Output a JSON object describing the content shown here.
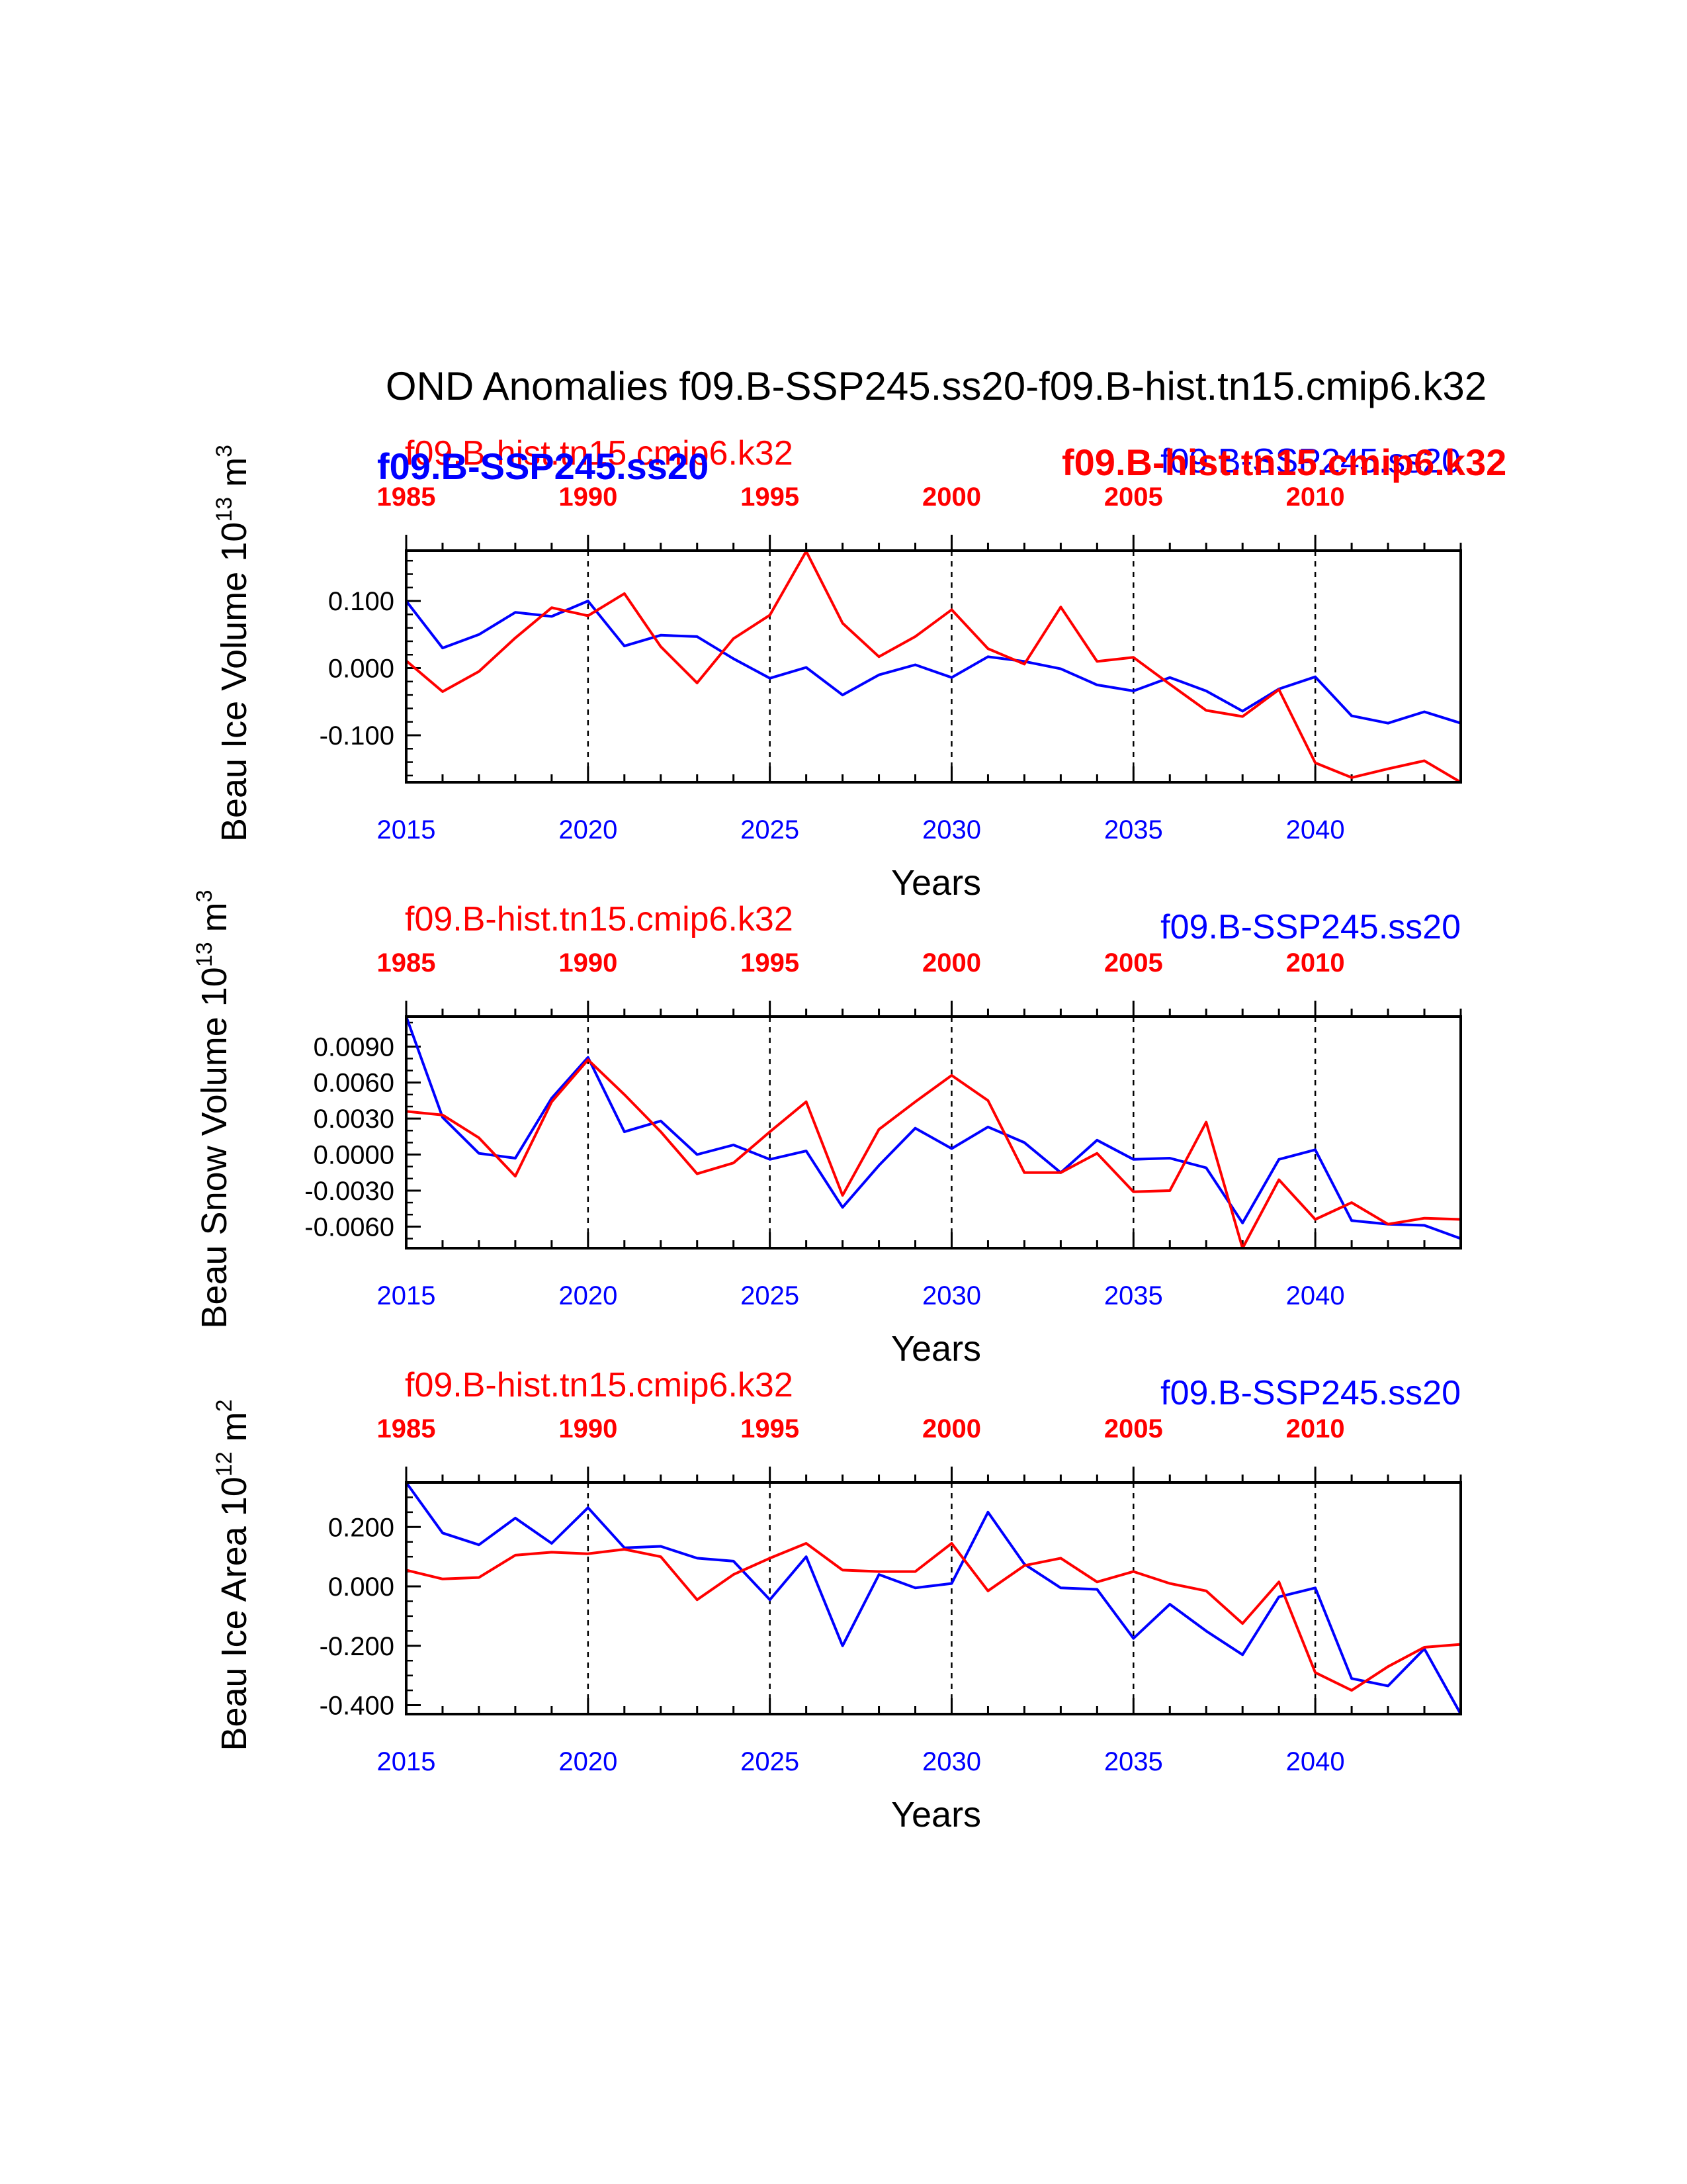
{
  "page": {
    "title": "OND Anomalies f09.B-SSP245.ss20-f09.B-hist.tn15.cmip6.k32"
  },
  "colors": {
    "ssp": "#0000ff",
    "hist": "#ff0000",
    "axis": "#000000"
  },
  "overlay_labels": {
    "left_blue": "f09.B-SSP245.ss20",
    "right_red": "f09.B-hist.tn15.cmip6.k32"
  },
  "chart_data": [
    {
      "type": "line",
      "ylabel": "Beau Ice Volume 10",
      "ylabel_exp": "13",
      "ylabel_unit": " m",
      "ylabel_unit_exp": "3",
      "xlabel": "Years",
      "top_left_label": "f09.B-hist.tn15.cmip6.k32",
      "top_right_label": "f09.B-SSP245.ss20",
      "bottom_axis": {
        "range": [
          2015,
          2044
        ],
        "ticks": [
          "2015",
          "2020",
          "2025",
          "2030",
          "2035",
          "2040"
        ]
      },
      "top_axis": {
        "range": [
          1985,
          2014
        ],
        "ticks": [
          "1985",
          "1990",
          "1995",
          "2000",
          "2005",
          "2010"
        ]
      },
      "ylim": [
        -0.17,
        0.175
      ],
      "yticks": [
        {
          "v": 0.1,
          "label": "0.100"
        },
        {
          "v": 0.0,
          "label": "0.000"
        },
        {
          "v": -0.1,
          "label": "-0.100"
        }
      ],
      "yminor_step": 0.02,
      "vlines": [
        2020,
        2025,
        2030,
        2035,
        2040
      ],
      "x": [
        2015,
        2016,
        2017,
        2018,
        2019,
        2020,
        2021,
        2022,
        2023,
        2024,
        2025,
        2026,
        2027,
        2028,
        2029,
        2030,
        2031,
        2032,
        2033,
        2034,
        2035,
        2036,
        2037,
        2038,
        2039,
        2040,
        2041,
        2042,
        2043,
        2044
      ],
      "series": [
        {
          "name": "f09.B-SSP245.ss20",
          "values": [
            0.1,
            0.03,
            0.05,
            0.083,
            0.077,
            0.1,
            0.033,
            0.049,
            0.047,
            0.014,
            -0.015,
            0.001,
            -0.04,
            -0.01,
            0.005,
            -0.014,
            0.017,
            0.01,
            -0.001,
            -0.025,
            -0.034,
            -0.014,
            -0.034,
            -0.064,
            -0.031,
            -0.013,
            -0.071,
            -0.082,
            -0.065,
            -0.082
          ]
        },
        {
          "name": "f09.B-hist.tn15.cmip6.k32",
          "values": [
            0.011,
            -0.035,
            -0.005,
            0.045,
            0.09,
            0.078,
            0.111,
            0.032,
            -0.022,
            0.044,
            0.079,
            0.174,
            0.067,
            0.017,
            0.047,
            0.087,
            0.029,
            0.006,
            0.091,
            0.01,
            0.016,
            -0.024,
            -0.063,
            -0.072,
            -0.032,
            -0.141,
            -0.163,
            -0.15,
            -0.138,
            -0.17
          ]
        }
      ]
    },
    {
      "type": "line",
      "ylabel": "Beau Snow Volume 10",
      "ylabel_exp": "13",
      "ylabel_unit": " m",
      "ylabel_unit_exp": "3",
      "xlabel": "Years",
      "top_left_label": "f09.B-hist.tn15.cmip6.k32",
      "top_right_label": "f09.B-SSP245.ss20",
      "bottom_axis": {
        "range": [
          2015,
          2044
        ],
        "ticks": [
          "2015",
          "2020",
          "2025",
          "2030",
          "2035",
          "2040"
        ]
      },
      "top_axis": {
        "range": [
          1985,
          2014
        ],
        "ticks": [
          "1985",
          "1990",
          "1995",
          "2000",
          "2005",
          "2010"
        ]
      },
      "ylim": [
        -0.0078,
        0.0115
      ],
      "yticks": [
        {
          "v": 0.009,
          "label": "0.0090"
        },
        {
          "v": 0.006,
          "label": "0.0060"
        },
        {
          "v": 0.003,
          "label": "0.0030"
        },
        {
          "v": 0.0,
          "label": "0.0000"
        },
        {
          "v": -0.003,
          "label": "-0.0030"
        },
        {
          "v": -0.006,
          "label": "-0.0060"
        }
      ],
      "yminor_step": 0.001,
      "vlines": [
        2020,
        2025,
        2030,
        2035,
        2040
      ],
      "x": [
        2015,
        2016,
        2017,
        2018,
        2019,
        2020,
        2021,
        2022,
        2023,
        2024,
        2025,
        2026,
        2027,
        2028,
        2029,
        2030,
        2031,
        2032,
        2033,
        2034,
        2035,
        2036,
        2037,
        2038,
        2039,
        2040,
        2041,
        2042,
        2043,
        2044
      ],
      "series": [
        {
          "name": "f09.B-SSP245.ss20",
          "values": [
            0.0115,
            0.0031,
            0.0001,
            -0.0003,
            0.0047,
            0.0081,
            0.0019,
            0.0028,
            0.0,
            0.0008,
            -0.0004,
            0.0003,
            -0.0044,
            -0.0009,
            0.0022,
            0.0005,
            0.0023,
            0.001,
            -0.0015,
            0.0012,
            -0.0004,
            -0.0003,
            -0.0011,
            -0.0057,
            -0.0004,
            0.0004,
            -0.0055,
            -0.0058,
            -0.0059,
            -0.007
          ]
        },
        {
          "name": "f09.B-hist.tn15.cmip6.k32",
          "values": [
            0.0036,
            0.0033,
            0.0014,
            -0.0018,
            0.0044,
            0.0079,
            0.005,
            0.0019,
            -0.0016,
            -0.0007,
            0.0019,
            0.0044,
            -0.0034,
            0.0021,
            0.0044,
            0.0066,
            0.0045,
            -0.0015,
            -0.0015,
            0.0001,
            -0.0031,
            -0.003,
            0.0027,
            -0.0078,
            -0.0021,
            -0.0054,
            -0.004,
            -0.0058,
            -0.0053,
            -0.0054
          ]
        }
      ]
    },
    {
      "type": "line",
      "ylabel": "Beau Ice Area 10",
      "ylabel_exp": "12",
      "ylabel_unit": " m",
      "ylabel_unit_exp": "2",
      "xlabel": "Years",
      "top_left_label": "f09.B-hist.tn15.cmip6.k32",
      "top_right_label": "f09.B-SSP245.ss20",
      "bottom_axis": {
        "range": [
          2015,
          2044
        ],
        "ticks": [
          "2015",
          "2020",
          "2025",
          "2030",
          "2035",
          "2040"
        ]
      },
      "top_axis": {
        "range": [
          1985,
          2014
        ],
        "ticks": [
          "1985",
          "1990",
          "1995",
          "2000",
          "2005",
          "2010"
        ]
      },
      "ylim": [
        -0.43,
        0.35
      ],
      "yticks": [
        {
          "v": 0.2,
          "label": "0.200"
        },
        {
          "v": 0.0,
          "label": "0.000"
        },
        {
          "v": -0.2,
          "label": "-0.200"
        },
        {
          "v": -0.4,
          "label": "-0.400"
        }
      ],
      "yminor_step": 0.05,
      "vlines": [
        2020,
        2025,
        2030,
        2035,
        2040
      ],
      "x": [
        2015,
        2016,
        2017,
        2018,
        2019,
        2020,
        2021,
        2022,
        2023,
        2024,
        2025,
        2026,
        2027,
        2028,
        2029,
        2030,
        2031,
        2032,
        2033,
        2034,
        2035,
        2036,
        2037,
        2038,
        2039,
        2040,
        2041,
        2042,
        2043,
        2044
      ],
      "series": [
        {
          "name": "f09.B-SSP245.ss20",
          "values": [
            0.35,
            0.18,
            0.14,
            0.23,
            0.145,
            0.265,
            0.13,
            0.135,
            0.095,
            0.085,
            -0.045,
            0.1,
            -0.2,
            0.04,
            -0.005,
            0.01,
            0.25,
            0.075,
            -0.005,
            -0.01,
            -0.175,
            -0.06,
            -0.15,
            -0.23,
            -0.035,
            -0.005,
            -0.31,
            -0.335,
            -0.21,
            -0.43
          ]
        },
        {
          "name": "f09.B-hist.tn15.cmip6.k32",
          "values": [
            0.055,
            0.025,
            0.03,
            0.105,
            0.115,
            0.11,
            0.125,
            0.1,
            -0.045,
            0.04,
            0.095,
            0.145,
            0.055,
            0.05,
            0.05,
            0.145,
            -0.015,
            0.07,
            0.095,
            0.015,
            0.05,
            0.01,
            -0.015,
            -0.125,
            0.015,
            -0.29,
            -0.35,
            -0.27,
            -0.205,
            -0.195
          ]
        }
      ]
    }
  ]
}
